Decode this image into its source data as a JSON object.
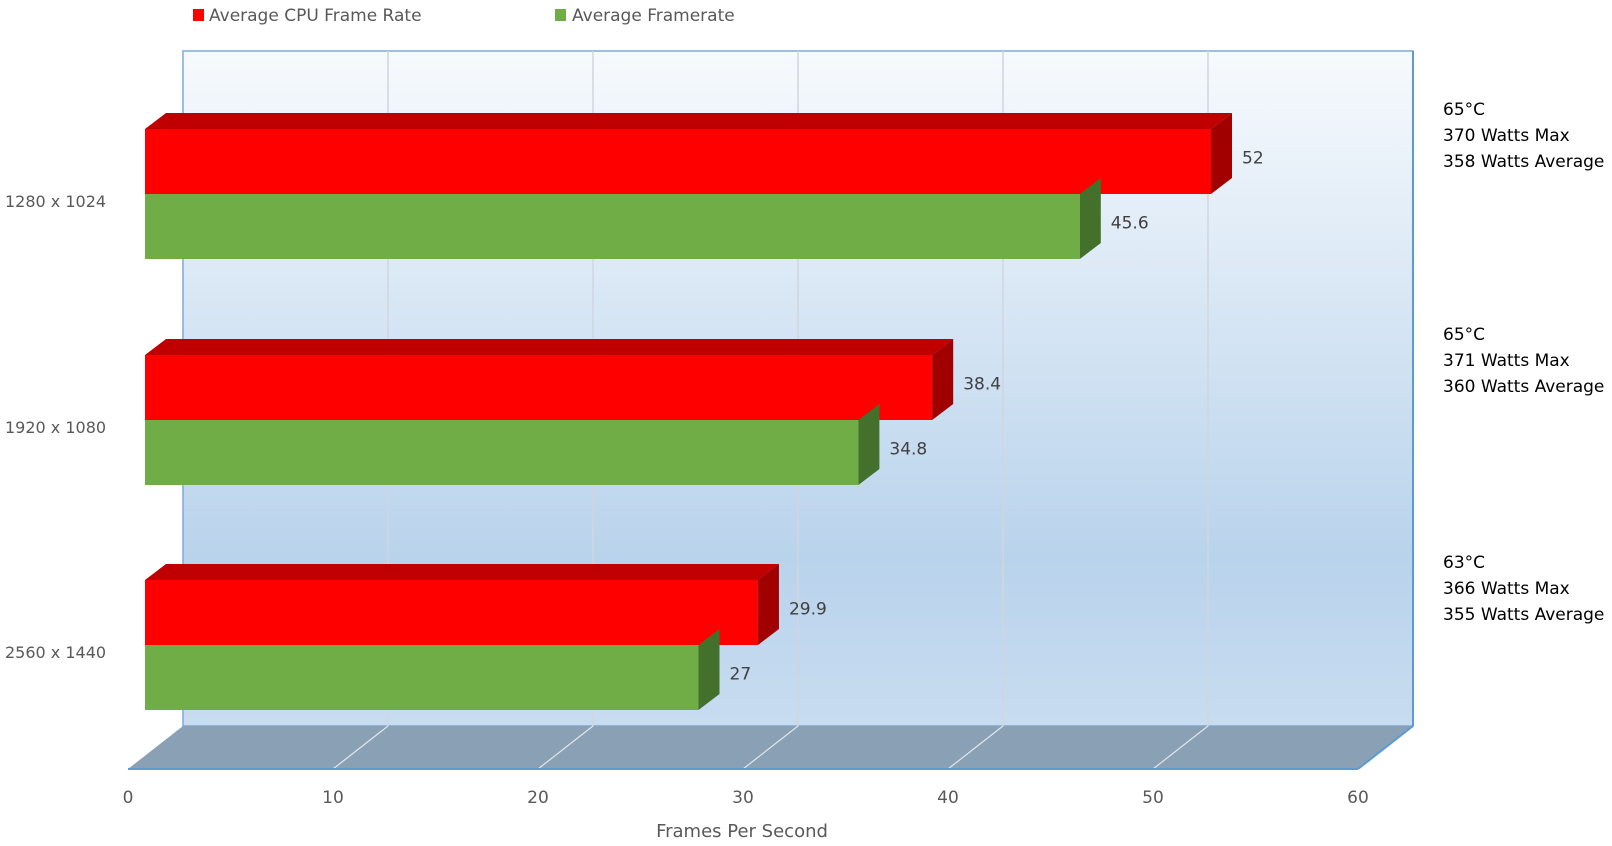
{
  "chart_data": {
    "type": "bar",
    "orientation": "horizontal",
    "style": "3d-clustered",
    "categories": [
      "1280 x 1024",
      "1920 x 1080",
      "2560 x 1440"
    ],
    "series": [
      {
        "name": "Average CPU Frame Rate",
        "color": "#ff0000",
        "values": [
          52,
          38.4,
          29.9
        ],
        "labels": [
          "52",
          "38.4",
          "29.9"
        ]
      },
      {
        "name": "Average Framerate",
        "color": "#70ad47",
        "values": [
          45.6,
          34.8,
          27
        ],
        "labels": [
          "45.6",
          "34.8",
          "27"
        ]
      }
    ],
    "xlabel": "Frames Per Second",
    "ylabel": "",
    "xlim": [
      0,
      60
    ],
    "xticks": [
      "0",
      "10",
      "20",
      "30",
      "40",
      "50",
      "60"
    ],
    "grid": true,
    "legend": "top-left",
    "annotations": [
      [
        "65°C",
        "370 Watts Max",
        "358 Watts Average"
      ],
      [
        "65°C",
        "371 Watts Max",
        "360 Watts Average"
      ],
      [
        "63°C",
        "366 Watts Max",
        "355 Watts Average"
      ]
    ]
  }
}
